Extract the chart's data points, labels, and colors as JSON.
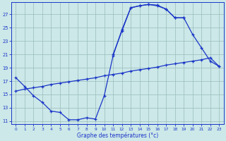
{
  "xlabel": "Graphe des températures (°c)",
  "bg_color": "#cce8e8",
  "line_color": "#1a35c8",
  "grid_color": "#99bbbb",
  "line1_x": [
    0,
    1,
    2,
    3,
    4,
    5,
    6,
    7,
    8,
    9,
    10,
    11,
    12,
    13,
    14,
    15,
    16,
    17,
    18,
    19,
    20,
    21,
    22,
    23
  ],
  "line1_y": [
    17.5,
    16.2,
    14.8,
    13.8,
    12.5,
    12.3,
    11.2,
    11.2,
    11.5,
    11.3,
    14.8,
    20.8,
    24.7,
    28.0,
    28.3,
    28.5,
    28.4,
    27.8,
    26.5,
    26.5,
    null,
    null,
    null,
    null
  ],
  "line2_x": [
    11,
    12,
    13,
    14,
    15,
    16,
    17,
    18,
    19,
    20,
    21,
    22,
    23
  ],
  "line2_y": [
    21.0,
    24.5,
    28.0,
    28.3,
    28.5,
    28.3,
    27.8,
    26.5,
    26.5,
    24.0,
    22.0,
    20.0,
    19.2
  ],
  "line3_x": [
    0,
    1,
    2,
    3,
    4,
    5,
    6,
    7,
    8,
    9,
    10,
    11,
    12,
    13,
    14,
    15,
    16,
    17,
    18,
    19,
    20,
    21,
    22,
    23
  ],
  "line3_y": [
    15.5,
    15.8,
    16.0,
    16.2,
    16.5,
    16.7,
    16.9,
    17.1,
    17.3,
    17.5,
    17.8,
    18.0,
    18.2,
    18.5,
    18.7,
    18.9,
    19.1,
    19.4,
    19.6,
    19.8,
    20.0,
    20.2,
    20.5,
    19.2
  ],
  "ylim_min": 10.5,
  "ylim_max": 28.8,
  "yticks": [
    11,
    13,
    15,
    17,
    19,
    21,
    23,
    25,
    27
  ]
}
